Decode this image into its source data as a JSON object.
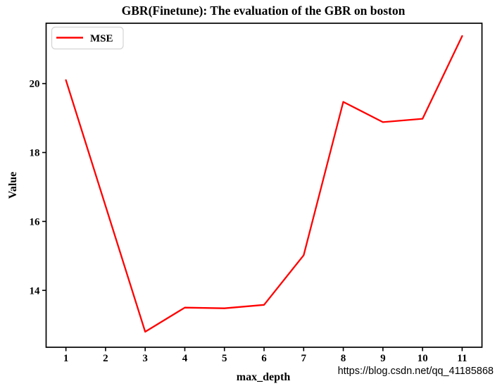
{
  "title": "GBR(Finetune): The evaluation of the GBR on boston",
  "legend": {
    "label": "MSE"
  },
  "watermark": "https://blog.csdn.net/qq_41185868",
  "colors": {
    "line": "#ff0000",
    "axis": "#000000",
    "watermark": "#d9d9d9",
    "legend_border": "#d4d4d4",
    "background": "#ffffff"
  },
  "chart_data": {
    "type": "line",
    "title": "GBR(Finetune): The evaluation of the GBR on boston",
    "xlabel": "max_depth",
    "ylabel": "Value",
    "x": [
      1,
      2,
      3,
      4,
      5,
      6,
      7,
      8,
      9,
      10,
      11
    ],
    "series": [
      {
        "name": "MSE",
        "color": "#ff0000",
        "values": [
          20.1,
          16.45,
          12.8,
          13.5,
          13.48,
          13.58,
          15.02,
          19.47,
          18.88,
          18.98,
          21.38
        ]
      }
    ],
    "xticks": [
      1,
      2,
      3,
      4,
      5,
      6,
      7,
      8,
      9,
      10,
      11
    ],
    "yticks": [
      14,
      16,
      18,
      20
    ],
    "xlim": [
      0.5,
      11.5
    ],
    "ylim": [
      12.35,
      21.75
    ],
    "grid": false,
    "legend_position": "upper left"
  }
}
